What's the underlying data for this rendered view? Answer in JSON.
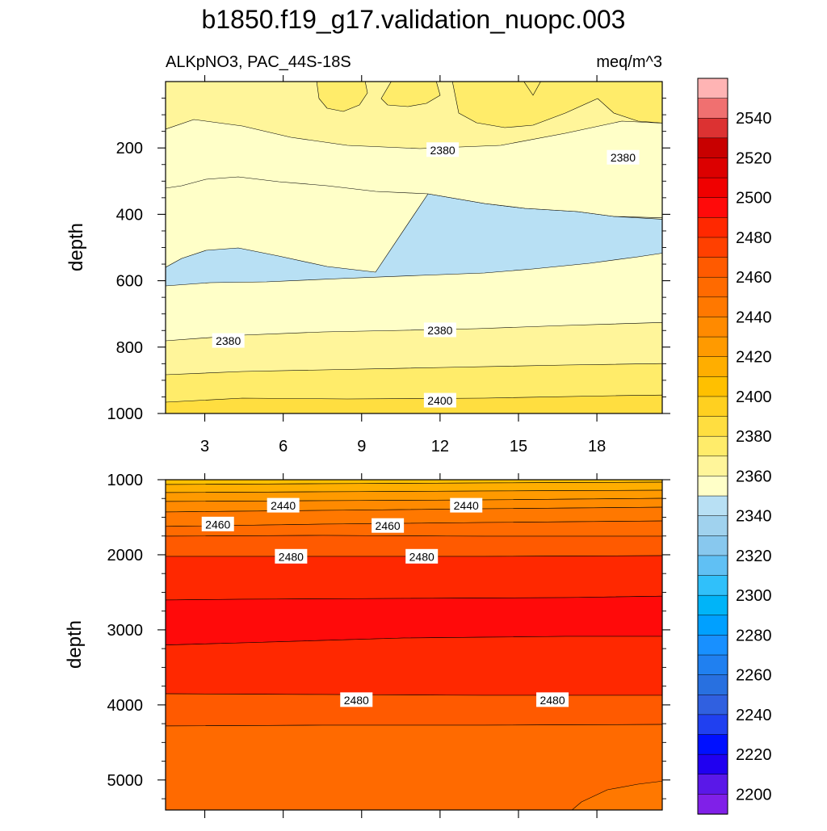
{
  "chart_data": {
    "type": "heatmap",
    "title": "b1850.f19_g17.validation_nuopc.003",
    "variable_label": "ALKpNO3, PAC_44S-18S",
    "units_label": "meq/m^3",
    "ylabel": "depth",
    "x_ticks": [
      "3",
      "6",
      "9",
      "12",
      "15",
      "18"
    ],
    "x_range": [
      1.5,
      20.5
    ],
    "upper_panel": {
      "ylim": [
        0,
        1000
      ],
      "y_ticks": [
        "200",
        "400",
        "600",
        "800",
        "1000"
      ],
      "y_tick_values": [
        200,
        400,
        600,
        800,
        1000
      ],
      "contour_labels": [
        {
          "text": "2380",
          "x": 12.1,
          "depth": 205
        },
        {
          "text": "2380",
          "x": 19.0,
          "depth": 228
        },
        {
          "text": "2380",
          "x": 3.9,
          "depth": 780
        },
        {
          "text": "2380",
          "x": 12.0,
          "depth": 748
        },
        {
          "text": "2400",
          "x": 12.0,
          "depth": 960
        }
      ]
    },
    "lower_panel": {
      "ylim": [
        1000,
        5400
      ],
      "y_ticks": [
        "1000",
        "2000",
        "3000",
        "4000",
        "5000"
      ],
      "y_tick_values": [
        1000,
        2000,
        3000,
        4000,
        5000
      ],
      "contour_labels": [
        {
          "text": "2440",
          "x": 6.0,
          "depth": 1340
        },
        {
          "text": "2440",
          "x": 13.0,
          "depth": 1340
        },
        {
          "text": "2460",
          "x": 3.5,
          "depth": 1590
        },
        {
          "text": "2460",
          "x": 10.0,
          "depth": 1610
        },
        {
          "text": "2480",
          "x": 6.3,
          "depth": 2020
        },
        {
          "text": "2480",
          "x": 11.3,
          "depth": 2020
        },
        {
          "text": "2480",
          "x": 8.8,
          "depth": 3930
        },
        {
          "text": "2480",
          "x": 16.3,
          "depth": 3930
        }
      ]
    },
    "colorbar": {
      "labels": [
        "2540",
        "2520",
        "2500",
        "2480",
        "2460",
        "2440",
        "2420",
        "2400",
        "2380",
        "2360",
        "2340",
        "2320",
        "2300",
        "2280",
        "2260",
        "2240",
        "2220",
        "2200"
      ],
      "label_values": [
        2540,
        2520,
        2500,
        2480,
        2460,
        2440,
        2420,
        2400,
        2380,
        2360,
        2340,
        2320,
        2300,
        2280,
        2260,
        2240,
        2220,
        2200
      ],
      "levels_min": 2190,
      "levels_max": 2560,
      "level_step": 10,
      "colors_top_to_bottom": [
        "#ffb4b4",
        "#f07070",
        "#dc3232",
        "#c80000",
        "#dc0000",
        "#f00000",
        "#ff0a0a",
        "#ff2800",
        "#ff4000",
        "#ff5a00",
        "#ff6a00",
        "#ff7800",
        "#ff8a00",
        "#ff9a00",
        "#ffae00",
        "#ffc000",
        "#ffd020",
        "#ffde40",
        "#ffec6a",
        "#fff59a",
        "#ffffc8",
        "#b8e0f4",
        "#a0d2ee",
        "#88c8ee",
        "#60c0f4",
        "#30c0fa",
        "#00b4f8",
        "#00a0ff",
        "#1890ff",
        "#2080f0",
        "#2870e0",
        "#3060e0",
        "#2040f0",
        "#0010ff",
        "#2000f0",
        "#5a18e8",
        "#8020e8"
      ]
    },
    "fill_colors": {
      "pale_yellow": "#ffffc8",
      "light_yellow": "#fff59a",
      "yellow": "#ffec6a",
      "deep_yellow": "#ffde40",
      "light_blue": "#b8e0f4",
      "gold": "#ffc000",
      "amber": "#ffae00",
      "orange_2440": "#ff9a00",
      "orange_2450": "#ff8a00",
      "orange_2460": "#ff7800",
      "orange_2470": "#ff6a00",
      "orange_red": "#ff5a00",
      "red_2490": "#ff2800",
      "red_2500": "#ff0a0a"
    }
  }
}
